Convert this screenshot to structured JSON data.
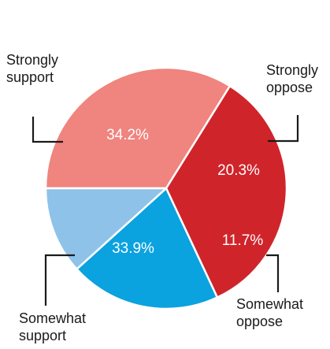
{
  "chart_data": {
    "type": "pie",
    "slices": [
      {
        "label_lines": [
          "Strongly",
          "support"
        ],
        "value": 34.2,
        "display": "34.2%",
        "color": "#d0242b"
      },
      {
        "label_lines": [
          "Strongly",
          "oppose"
        ],
        "value": 20.3,
        "display": "20.3%",
        "color": "#0aa2df"
      },
      {
        "label_lines": [
          "Somewhat",
          "oppose"
        ],
        "value": 11.7,
        "display": "11.7%",
        "color": "#8fc2e8"
      },
      {
        "label_lines": [
          "Somewhat",
          "support"
        ],
        "value": 33.9,
        "display": "33.9%",
        "color": "#f0847e"
      }
    ],
    "start_slice": "Somewhat support",
    "direction": "clockwise"
  }
}
